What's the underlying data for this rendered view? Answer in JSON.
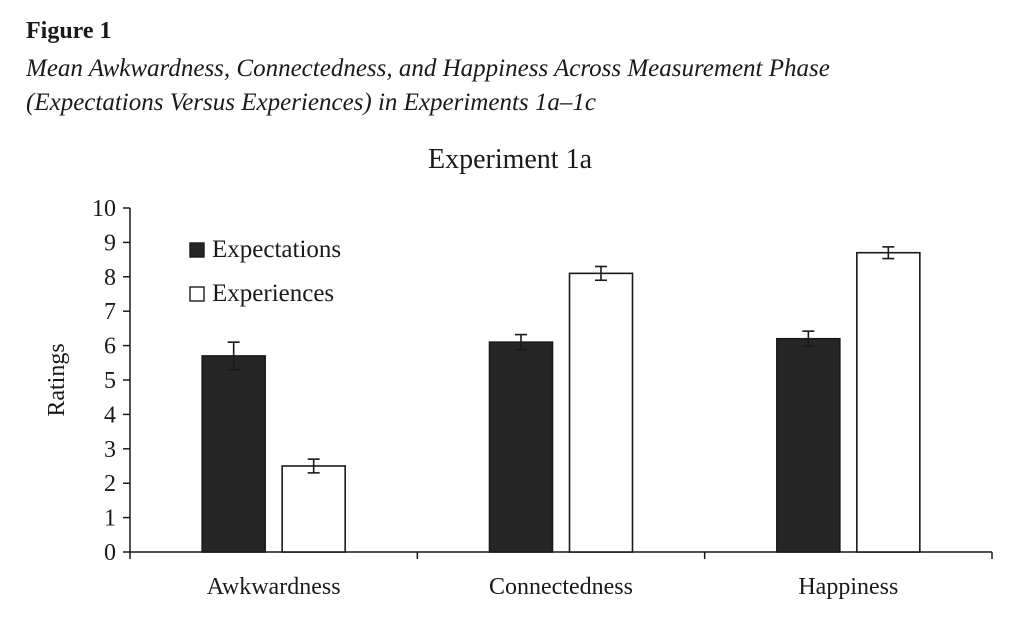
{
  "figure": {
    "label": "Figure 1",
    "caption_line1": "Mean Awkwardness, Connectedness, and Happiness Across Measurement Phase",
    "caption_line2": "(Expectations Versus Experiences) in Experiments 1a–1c"
  },
  "chart_data": {
    "type": "bar",
    "title": "Experiment 1a",
    "xlabel": "",
    "ylabel": "Ratings",
    "ylim": [
      0,
      10
    ],
    "yticks": [
      0,
      1,
      2,
      3,
      4,
      5,
      6,
      7,
      8,
      9,
      10
    ],
    "grid": false,
    "legend_position": "top-left",
    "categories": [
      "Awkwardness",
      "Connectedness",
      "Happiness"
    ],
    "series": [
      {
        "name": "Expectations",
        "color": "#262626",
        "values": [
          5.7,
          6.1,
          6.2
        ],
        "error": [
          0.4,
          0.22,
          0.22
        ]
      },
      {
        "name": "Experiences",
        "color": "#ffffff",
        "values": [
          2.5,
          8.1,
          8.7
        ],
        "error": [
          0.2,
          0.2,
          0.17
        ]
      }
    ]
  }
}
